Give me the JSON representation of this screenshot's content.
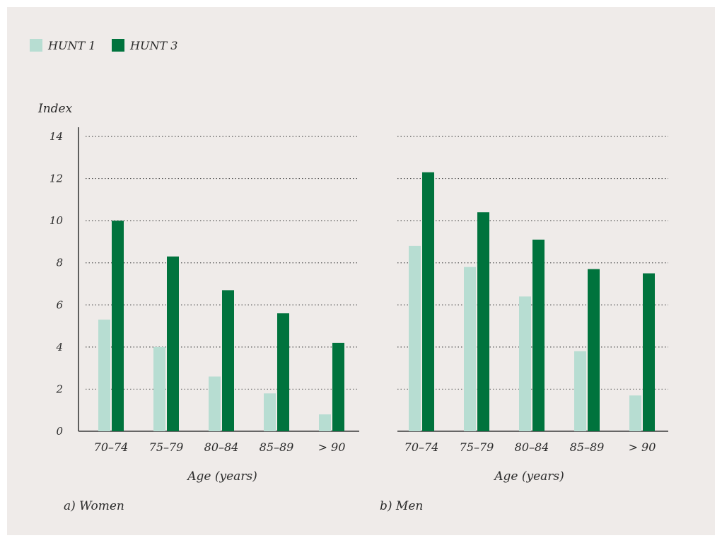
{
  "legend": {
    "items": [
      {
        "label": "HUNT 1",
        "color": "#b7ddd2"
      },
      {
        "label": "HUNT 3",
        "color": "#00733d"
      }
    ]
  },
  "chart_data": {
    "type": "bar",
    "ylabel": "Index",
    "ylim": [
      0,
      14
    ],
    "y_ticks": [
      0,
      2,
      4,
      6,
      8,
      10,
      12,
      14
    ],
    "grid": "horizontal dotted",
    "legend_position": "top-left",
    "panels": [
      {
        "caption": "a) Women",
        "xlabel": "Age (years)",
        "categories": [
          "70–74",
          "75–79",
          "80–84",
          "85–89",
          "> 90"
        ],
        "series": [
          {
            "name": "HUNT 1",
            "color": "#b7ddd2",
            "values": [
              5.3,
              4.0,
              2.6,
              1.8,
              0.8
            ]
          },
          {
            "name": "HUNT 3",
            "color": "#00733d",
            "values": [
              10.0,
              8.3,
              6.7,
              5.6,
              4.2
            ]
          }
        ]
      },
      {
        "caption": "b) Men",
        "xlabel": "Age (years)",
        "categories": [
          "70–74",
          "75–79",
          "80–84",
          "85–89",
          "> 90"
        ],
        "series": [
          {
            "name": "HUNT 1",
            "color": "#b7ddd2",
            "values": [
              8.8,
              7.8,
              6.4,
              3.8,
              1.7
            ]
          },
          {
            "name": "HUNT 3",
            "color": "#00733d",
            "values": [
              12.3,
              10.4,
              9.1,
              7.7,
              7.5
            ]
          }
        ]
      }
    ]
  }
}
